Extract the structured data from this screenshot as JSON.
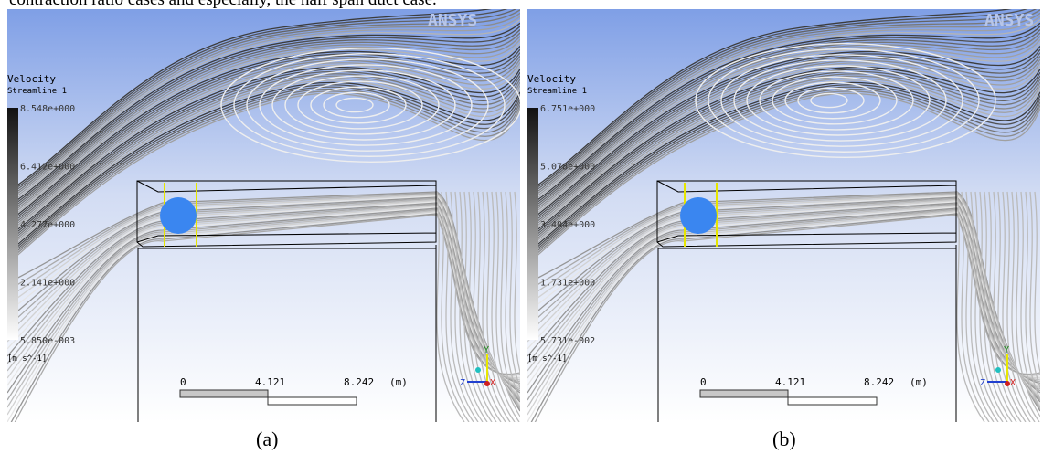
{
  "header": {
    "text": "contraction ratio cases and especially, the half span duct case."
  },
  "logo": "ANSYS",
  "panels": [
    {
      "caption": "(a)",
      "legend": {
        "title": "Velocity",
        "subtitle": "Streamline 1",
        "values": [
          "8.548e+000",
          "6.412e+000",
          "4.277e+000",
          "2.141e+000",
          "5.850e-003"
        ],
        "unit": "[m s^-1]"
      },
      "scale": {
        "ticks": [
          "0",
          "4.121",
          "8.242"
        ],
        "unit": "(m)"
      },
      "axes": [
        "Y",
        "Z",
        "X"
      ]
    },
    {
      "caption": "(b)",
      "legend": {
        "title": "Velocity",
        "subtitle": "Streamline 1",
        "values": [
          "6.751e+000",
          "5.078e+000",
          "3.404e+000",
          "1.731e+000",
          "5.731e-002"
        ],
        "unit": "[m s^-1]"
      },
      "scale": {
        "ticks": [
          "0",
          "4.121",
          "8.242"
        ],
        "unit": "(m)"
      },
      "axes": [
        "Y",
        "Z",
        "X"
      ]
    }
  ]
}
